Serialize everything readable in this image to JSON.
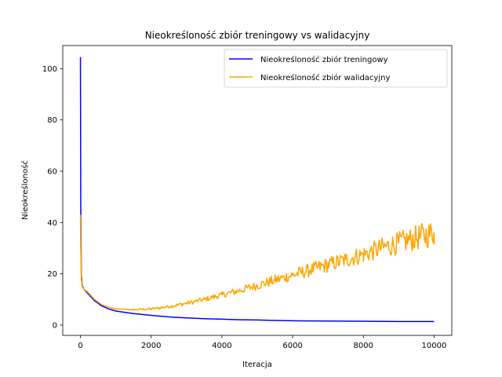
{
  "chart_data": {
    "type": "line",
    "title": "Nieokreśloność zbiór treningowy vs walidacyjny",
    "xlabel": "Iteracja",
    "ylabel": "Nieokreśloność",
    "xlim": [
      -500,
      10500
    ],
    "ylim": [
      -4,
      109
    ],
    "xticks": [
      0,
      2000,
      4000,
      6000,
      8000,
      10000
    ],
    "yticks": [
      0,
      20,
      40,
      60,
      80,
      100
    ],
    "grid": false,
    "legend_position": "top-right",
    "series": [
      {
        "name": "Nieokreśloność zbiór treningowy",
        "color": "#0000ff",
        "x": [
          0,
          10,
          25,
          50,
          100,
          200,
          300,
          400,
          500,
          600,
          800,
          1000,
          1500,
          2000,
          2500,
          3000,
          3500,
          4000,
          4500,
          5000,
          5500,
          6000,
          7000,
          8000,
          9000,
          10000
        ],
        "y": [
          104.5,
          42,
          20,
          15.5,
          14,
          12.5,
          11,
          9.5,
          8.5,
          7.5,
          6.3,
          5.5,
          4.5,
          3.8,
          3.2,
          2.8,
          2.5,
          2.3,
          2.1,
          2.0,
          1.8,
          1.7,
          1.6,
          1.5,
          1.4,
          1.4
        ]
      },
      {
        "name": "Nieokreśloność zbiór walidacyjny",
        "color": "#ffa500",
        "x": [
          0,
          10,
          25,
          50,
          100,
          200,
          300,
          400,
          500,
          600,
          800,
          1000,
          1500,
          2000,
          2500,
          3000,
          3500,
          4000,
          4500,
          5000,
          5500,
          6000,
          6500,
          7000,
          7500,
          8000,
          8500,
          9000,
          9500,
          10000
        ],
        "y": [
          43,
          30,
          18,
          15,
          14,
          13,
          11.5,
          10,
          9,
          8,
          7,
          6.3,
          6.0,
          6.3,
          7.2,
          8.5,
          10,
          11.8,
          13.5,
          15.5,
          17.5,
          19.5,
          21.5,
          23.5,
          25.5,
          27.5,
          30,
          32,
          34,
          36
        ],
        "noise_amplitude": [
          0,
          0,
          0,
          0,
          0,
          0,
          0,
          0,
          0,
          0,
          0,
          0,
          0.3,
          0.5,
          0.6,
          0.8,
          1.0,
          1.2,
          1.5,
          1.8,
          2.1,
          2.4,
          2.7,
          3.0,
          3.3,
          3.6,
          4.0,
          4.5,
          5.0,
          5.5
        ]
      }
    ]
  }
}
